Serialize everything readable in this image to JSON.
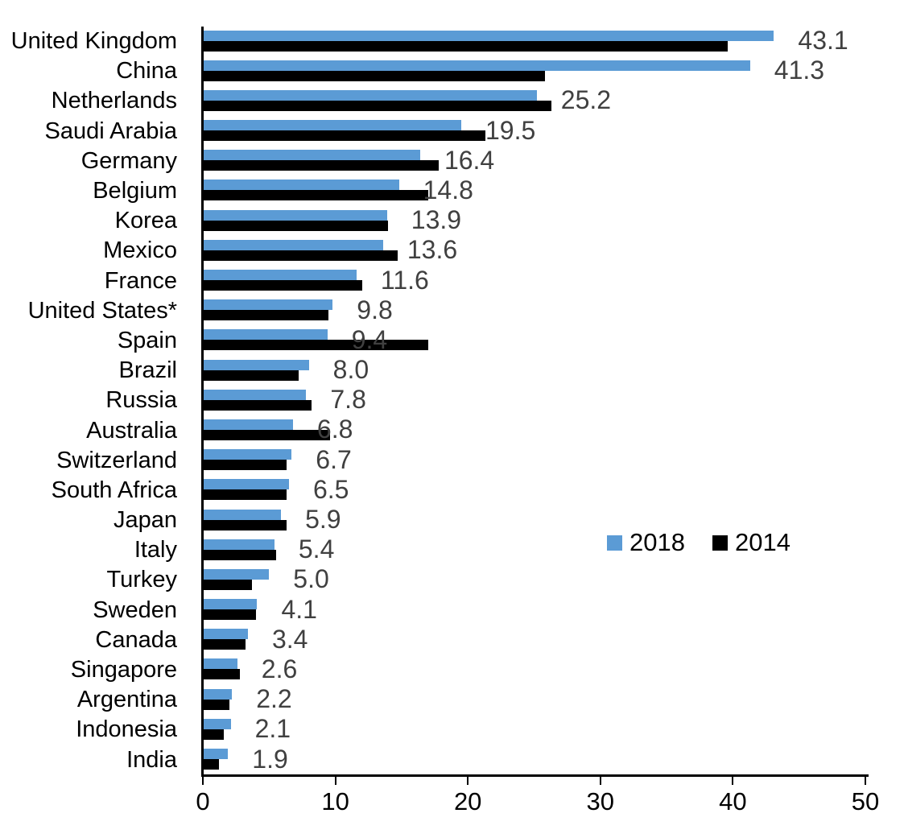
{
  "chart_data": {
    "type": "bar",
    "orientation": "horizontal",
    "title": "",
    "xlabel": "",
    "ylabel": "",
    "xlim": [
      0,
      50
    ],
    "x_ticks": [
      0,
      10,
      20,
      30,
      40,
      50
    ],
    "grid": false,
    "legend_position": "middle-right",
    "categories": [
      "United Kingdom",
      "China",
      "Netherlands",
      "Saudi Arabia",
      "Germany",
      "Belgium",
      "Korea",
      "Mexico",
      "France",
      "United States*",
      "Spain",
      "Brazil",
      "Russia",
      "Australia",
      "Switzerland",
      "South Africa",
      "Japan",
      "Italy",
      "Turkey",
      "Sweden",
      "Canada",
      "Singapore",
      "Argentina",
      "Indonesia",
      "India"
    ],
    "series": [
      {
        "name": "2018",
        "color": "#5B9BD5",
        "values": [
          43.1,
          41.3,
          25.2,
          19.5,
          16.4,
          14.8,
          13.9,
          13.6,
          11.6,
          9.8,
          9.4,
          8.0,
          7.8,
          6.8,
          6.7,
          6.5,
          5.9,
          5.4,
          5.0,
          4.1,
          3.4,
          2.6,
          2.2,
          2.1,
          1.9
        ]
      },
      {
        "name": "2014",
        "color": "#000000",
        "values": [
          39.6,
          25.8,
          26.3,
          21.3,
          17.8,
          17.0,
          14.0,
          14.7,
          12.0,
          9.5,
          17.0,
          7.2,
          8.2,
          9.6,
          6.3,
          6.3,
          6.3,
          5.5,
          3.7,
          4.0,
          3.2,
          2.8,
          2.0,
          1.6,
          1.2
        ]
      }
    ],
    "data_labels": {
      "series": "2018",
      "format": "one_decimal",
      "color": "#404040",
      "values_text": [
        "43.1",
        "41.3",
        "25.2",
        "19.5",
        "16.4",
        "14.8",
        "13.9",
        "13.6",
        "11.6",
        "9.8",
        "9.4",
        "8.0",
        "7.8",
        "6.8",
        "6.7",
        "6.5",
        "5.9",
        "5.4",
        "5.0",
        "4.1",
        "3.4",
        "2.6",
        "2.2",
        "2.1",
        "1.9"
      ]
    },
    "legend": [
      {
        "label": "2018",
        "color": "#5B9BD5"
      },
      {
        "label": "2014",
        "color": "#000000"
      }
    ]
  }
}
